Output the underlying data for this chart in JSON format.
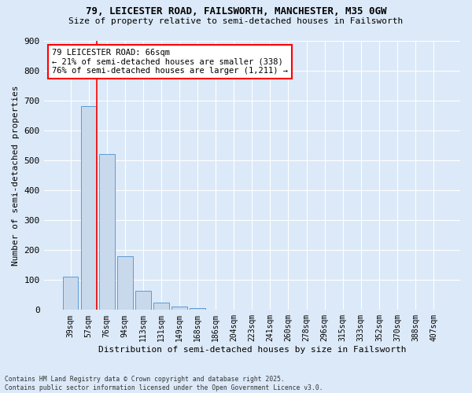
{
  "title1": "79, LEICESTER ROAD, FAILSWORTH, MANCHESTER, M35 0GW",
  "title2": "Size of property relative to semi-detached houses in Failsworth",
  "xlabel": "Distribution of semi-detached houses by size in Failsworth",
  "ylabel": "Number of semi-detached properties",
  "categories": [
    "39sqm",
    "57sqm",
    "76sqm",
    "94sqm",
    "113sqm",
    "131sqm",
    "149sqm",
    "168sqm",
    "186sqm",
    "204sqm",
    "223sqm",
    "241sqm",
    "260sqm",
    "278sqm",
    "296sqm",
    "315sqm",
    "333sqm",
    "352sqm",
    "370sqm",
    "388sqm",
    "407sqm"
  ],
  "values": [
    110,
    680,
    520,
    180,
    63,
    25,
    12,
    7,
    2,
    1,
    0,
    0,
    0,
    0,
    0,
    0,
    0,
    0,
    0,
    0,
    0
  ],
  "bar_color": "#c9d9ec",
  "bar_edge_color": "#5b9bd5",
  "vline_color": "#ff0000",
  "vline_x": 1.47,
  "annotation_text": "79 LEICESTER ROAD: 66sqm\n← 21% of semi-detached houses are smaller (338)\n76% of semi-detached houses are larger (1,211) →",
  "annotation_box_color": "#ffffff",
  "annotation_box_edge": "#ff0000",
  "ylim": [
    0,
    900
  ],
  "yticks": [
    0,
    100,
    200,
    300,
    400,
    500,
    600,
    700,
    800,
    900
  ],
  "footer": "Contains HM Land Registry data © Crown copyright and database right 2025.\nContains public sector information licensed under the Open Government Licence v3.0.",
  "bg_color": "#dce9f8",
  "plot_bg_color": "#dce9f8",
  "grid_color": "#ffffff"
}
